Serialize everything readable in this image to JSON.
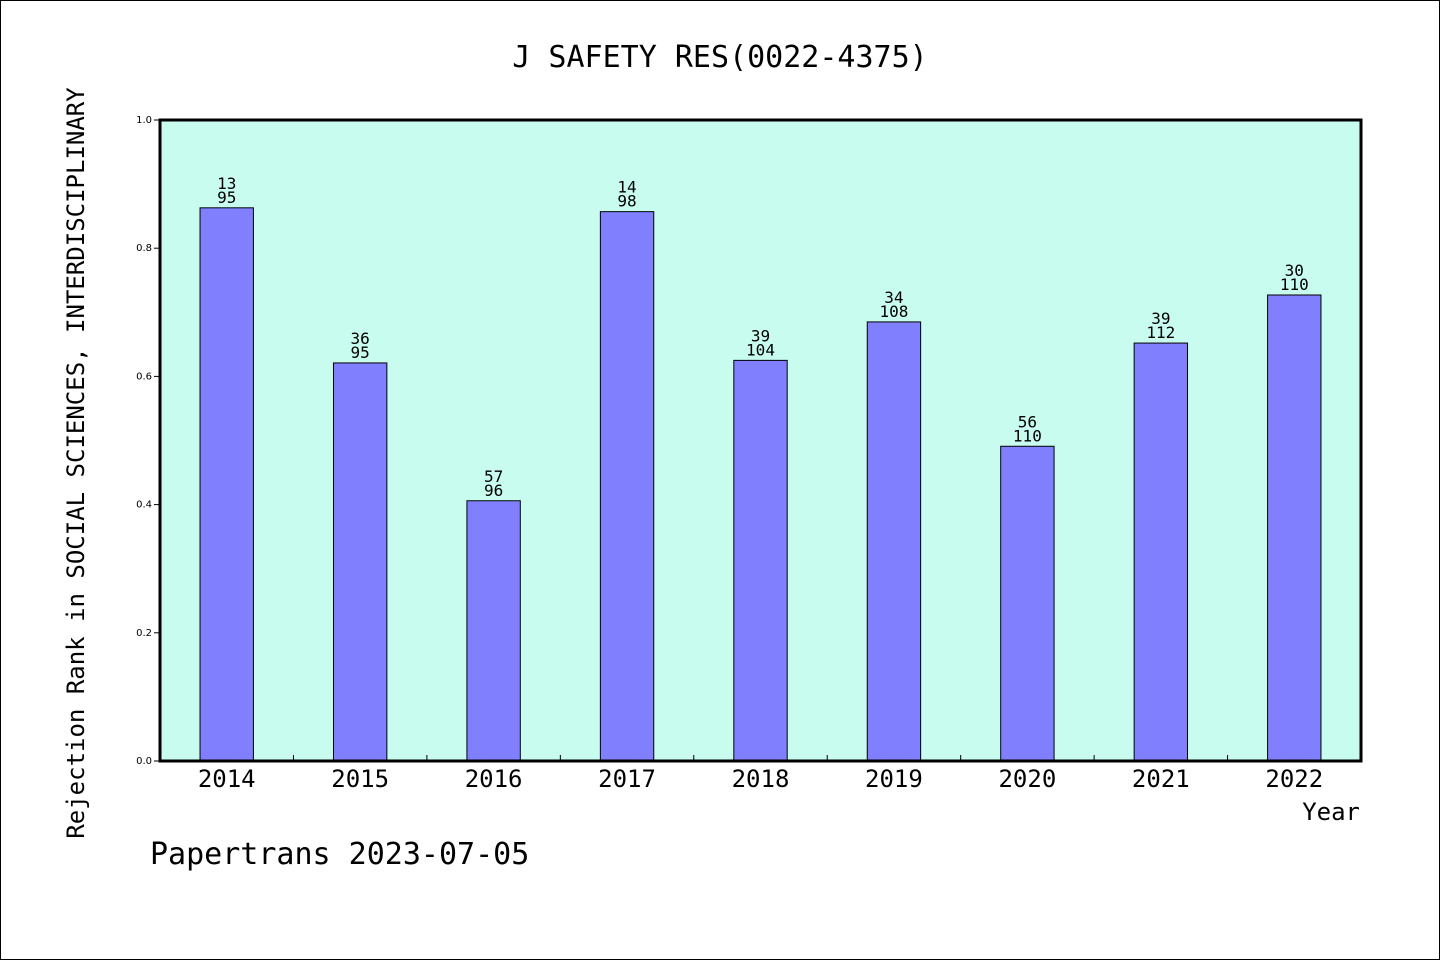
{
  "chart_data": {
    "type": "bar",
    "title": "J SAFETY RES(0022-4375)",
    "xlabel": "Year",
    "ylabel": "Rejection Rank in SOCIAL SCIENCES, INTERDISCIPLINARY",
    "footer": "Papertrans 2023-07-05",
    "categories": [
      "2014",
      "2015",
      "2016",
      "2017",
      "2018",
      "2019",
      "2020",
      "2021",
      "2022"
    ],
    "values": [
      0.863,
      0.621,
      0.406,
      0.857,
      0.625,
      0.685,
      0.491,
      0.652,
      0.727
    ],
    "label_top": [
      "13",
      "36",
      "57",
      "14",
      "39",
      "34",
      "56",
      "39",
      "30"
    ],
    "label_bottom": [
      "95",
      "95",
      "96",
      "98",
      "104",
      "108",
      "110",
      "112",
      "110"
    ],
    "ylim": [
      0,
      1.0
    ],
    "yticks": [
      "0.0",
      "0.2",
      "0.4",
      "0.6",
      "0.8",
      "1.0"
    ],
    "grid": false,
    "colors": {
      "plot_background": "#c8fcee",
      "bar_fill": "#8080ff",
      "bar_stroke": "#000000",
      "frame": "#000000"
    }
  }
}
